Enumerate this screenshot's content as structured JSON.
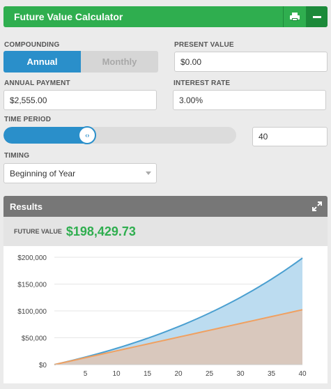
{
  "header": {
    "title": "Future Value Calculator"
  },
  "compounding": {
    "label": "COMPOUNDING",
    "options": [
      "Annual",
      "Monthly"
    ],
    "selected": "Annual"
  },
  "present_value": {
    "label": "PRESENT VALUE",
    "value": "$0.00"
  },
  "annual_payment": {
    "label": "ANNUAL PAYMENT",
    "value": "$2,555.00"
  },
  "interest_rate": {
    "label": "INTEREST RATE",
    "value": "3.00%"
  },
  "time_period": {
    "label": "TIME PERIOD",
    "value": "40",
    "slider_fraction": 0.36
  },
  "timing": {
    "label": "TIMING",
    "value": "Beginning of Year"
  },
  "results": {
    "title": "Results",
    "future_value_label": "FUTURE VALUE",
    "future_value": "$198,429.73"
  },
  "colors": {
    "green": "#2fae4f",
    "blue": "#2a8fca",
    "total_line": "#4a9fd0",
    "total_fill": "#bcdcf0",
    "principal_line": "#f0a060",
    "principal_fill": "#d9c8bd"
  },
  "chart_data": {
    "type": "area",
    "x": [
      1,
      2,
      3,
      4,
      5,
      6,
      7,
      8,
      9,
      10,
      11,
      12,
      13,
      14,
      15,
      16,
      17,
      18,
      19,
      20,
      21,
      22,
      23,
      24,
      25,
      26,
      27,
      28,
      29,
      30,
      31,
      32,
      33,
      34,
      35,
      36,
      37,
      38,
      39,
      40
    ],
    "x_ticks": [
      5,
      10,
      15,
      20,
      25,
      30,
      35,
      40
    ],
    "y_ticks": [
      "$0",
      "$50,000",
      "$100,000",
      "$150,000",
      "$200,000"
    ],
    "ylim": [
      0,
      200000
    ],
    "series": [
      {
        "name": "",
        "values": [
          2632,
          5342,
          8135,
          11011,
          13973,
          17024,
          20166,
          23403,
          26736,
          30170,
          33707,
          37350,
          41102,
          44967,
          48948,
          53048,
          57271,
          61621,
          66101,
          70716,
          75469,
          80365,
          85407,
          90601,
          95951,
          101461,
          107136,
          112982,
          119003,
          125205,
          131592,
          138171,
          144948,
          151928,
          159117,
          166522,
          174149,
          182005,
          190096,
          198430
        ]
      },
      {
        "name": "",
        "values": [
          2555,
          5110,
          7665,
          10220,
          12775,
          15330,
          17885,
          20440,
          22995,
          25550,
          28105,
          30660,
          33215,
          35770,
          38325,
          40880,
          43435,
          45990,
          48545,
          51100,
          53655,
          56210,
          58765,
          61320,
          63875,
          66430,
          68985,
          71540,
          74095,
          76650,
          79205,
          81760,
          84315,
          86870,
          89425,
          91980,
          94535,
          97090,
          99645,
          102200
        ]
      }
    ]
  }
}
